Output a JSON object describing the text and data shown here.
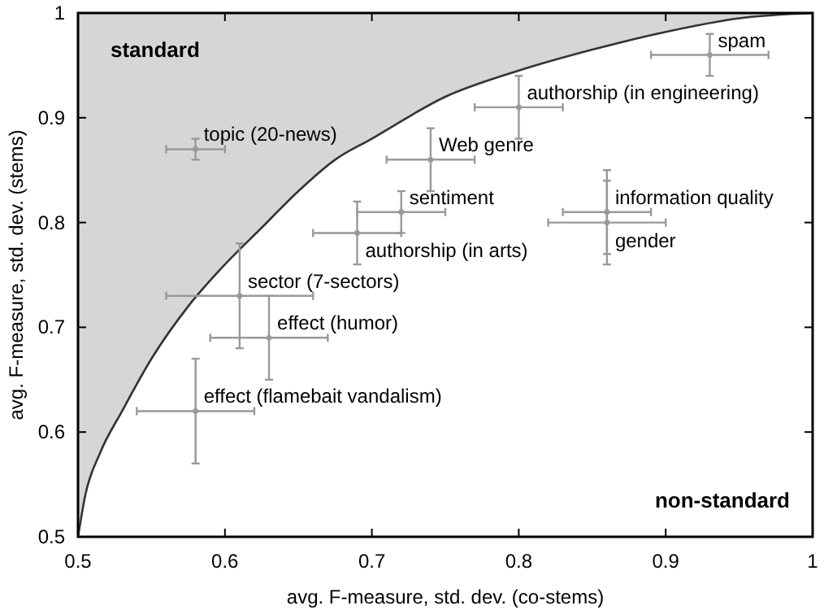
{
  "chart_data": {
    "type": "scatter",
    "xlabel": "avg. F-measure, std. dev. (co-stems)",
    "ylabel": "avg. F-measure, std. dev. (stems)",
    "xlim": [
      0.5,
      1
    ],
    "ylim": [
      0.5,
      1
    ],
    "xticks": [
      0.5,
      0.6,
      0.7,
      0.8,
      0.9,
      1
    ],
    "yticks": [
      0.5,
      0.6,
      0.7,
      0.8,
      0.9,
      1
    ],
    "grid": false,
    "series": [
      {
        "type": "line",
        "color": "#333333",
        "x": [
          0.5,
          0.505,
          0.515,
          0.53,
          0.55,
          0.575,
          0.6,
          0.625,
          0.65,
          0.675,
          0.7,
          0.75,
          0.8,
          0.85,
          0.9,
          0.95,
          1
        ],
        "values": [
          0.5,
          0.54,
          0.58,
          0.62,
          0.67,
          0.72,
          0.76,
          0.795,
          0.83,
          0.86,
          0.88,
          0.92,
          0.945,
          0.965,
          0.982,
          0.995,
          1
        ],
        "lower": [
          0.5,
          0.54,
          0.58,
          0.62,
          0.67,
          0.72,
          0.76,
          0.795,
          0.83,
          0.86,
          0.88,
          0.92,
          0.945,
          0.965,
          0.982,
          0.995,
          1
        ],
        "upper": [
          1,
          1,
          1,
          1,
          1,
          1,
          1,
          1,
          1,
          1,
          1,
          1,
          1,
          1,
          1,
          1,
          1
        ]
      },
      {
        "color": "#999999",
        "marker": "circle",
        "x": [
          0.58,
          0.93,
          0.8,
          0.74,
          0.72,
          0.69,
          0.86,
          0.86,
          0.61,
          0.63,
          0.58
        ],
        "values": [
          0.87,
          0.96,
          0.91,
          0.86,
          0.81,
          0.79,
          0.81,
          0.8,
          0.73,
          0.69,
          0.62
        ],
        "errors": [
          0.01,
          0.02,
          0.03,
          0.03,
          0.02,
          0.03,
          0.04,
          0.04,
          0.05,
          0.04,
          0.05
        ],
        "xerrors": [
          0.02,
          0.04,
          0.03,
          0.03,
          0.03,
          0.03,
          0.03,
          0.04,
          0.05,
          0.04,
          0.04
        ]
      }
    ],
    "annotations": [
      {
        "text": "topic (20-news)",
        "x": 0.58,
        "y": 0.87
      },
      {
        "text": "spam",
        "x": 0.93,
        "y": 0.96
      },
      {
        "text": "authorship (in engineering)",
        "x": 0.8,
        "y": 0.91
      },
      {
        "text": "Web genre",
        "x": 0.74,
        "y": 0.86
      },
      {
        "text": "sentiment",
        "x": 0.72,
        "y": 0.81
      },
      {
        "text": "authorship (in arts)",
        "x": 0.69,
        "y": 0.79
      },
      {
        "text": "information quality",
        "x": 0.86,
        "y": 0.81
      },
      {
        "text": "gender",
        "x": 0.86,
        "y": 0.8
      },
      {
        "text": "sector (7-sectors)",
        "x": 0.61,
        "y": 0.73
      },
      {
        "text": "effect (humor)",
        "x": 0.63,
        "y": 0.69
      },
      {
        "text": "effect (flamebait vandalism)",
        "x": 0.58,
        "y": 0.62
      },
      "standard",
      "non-standard"
    ]
  }
}
